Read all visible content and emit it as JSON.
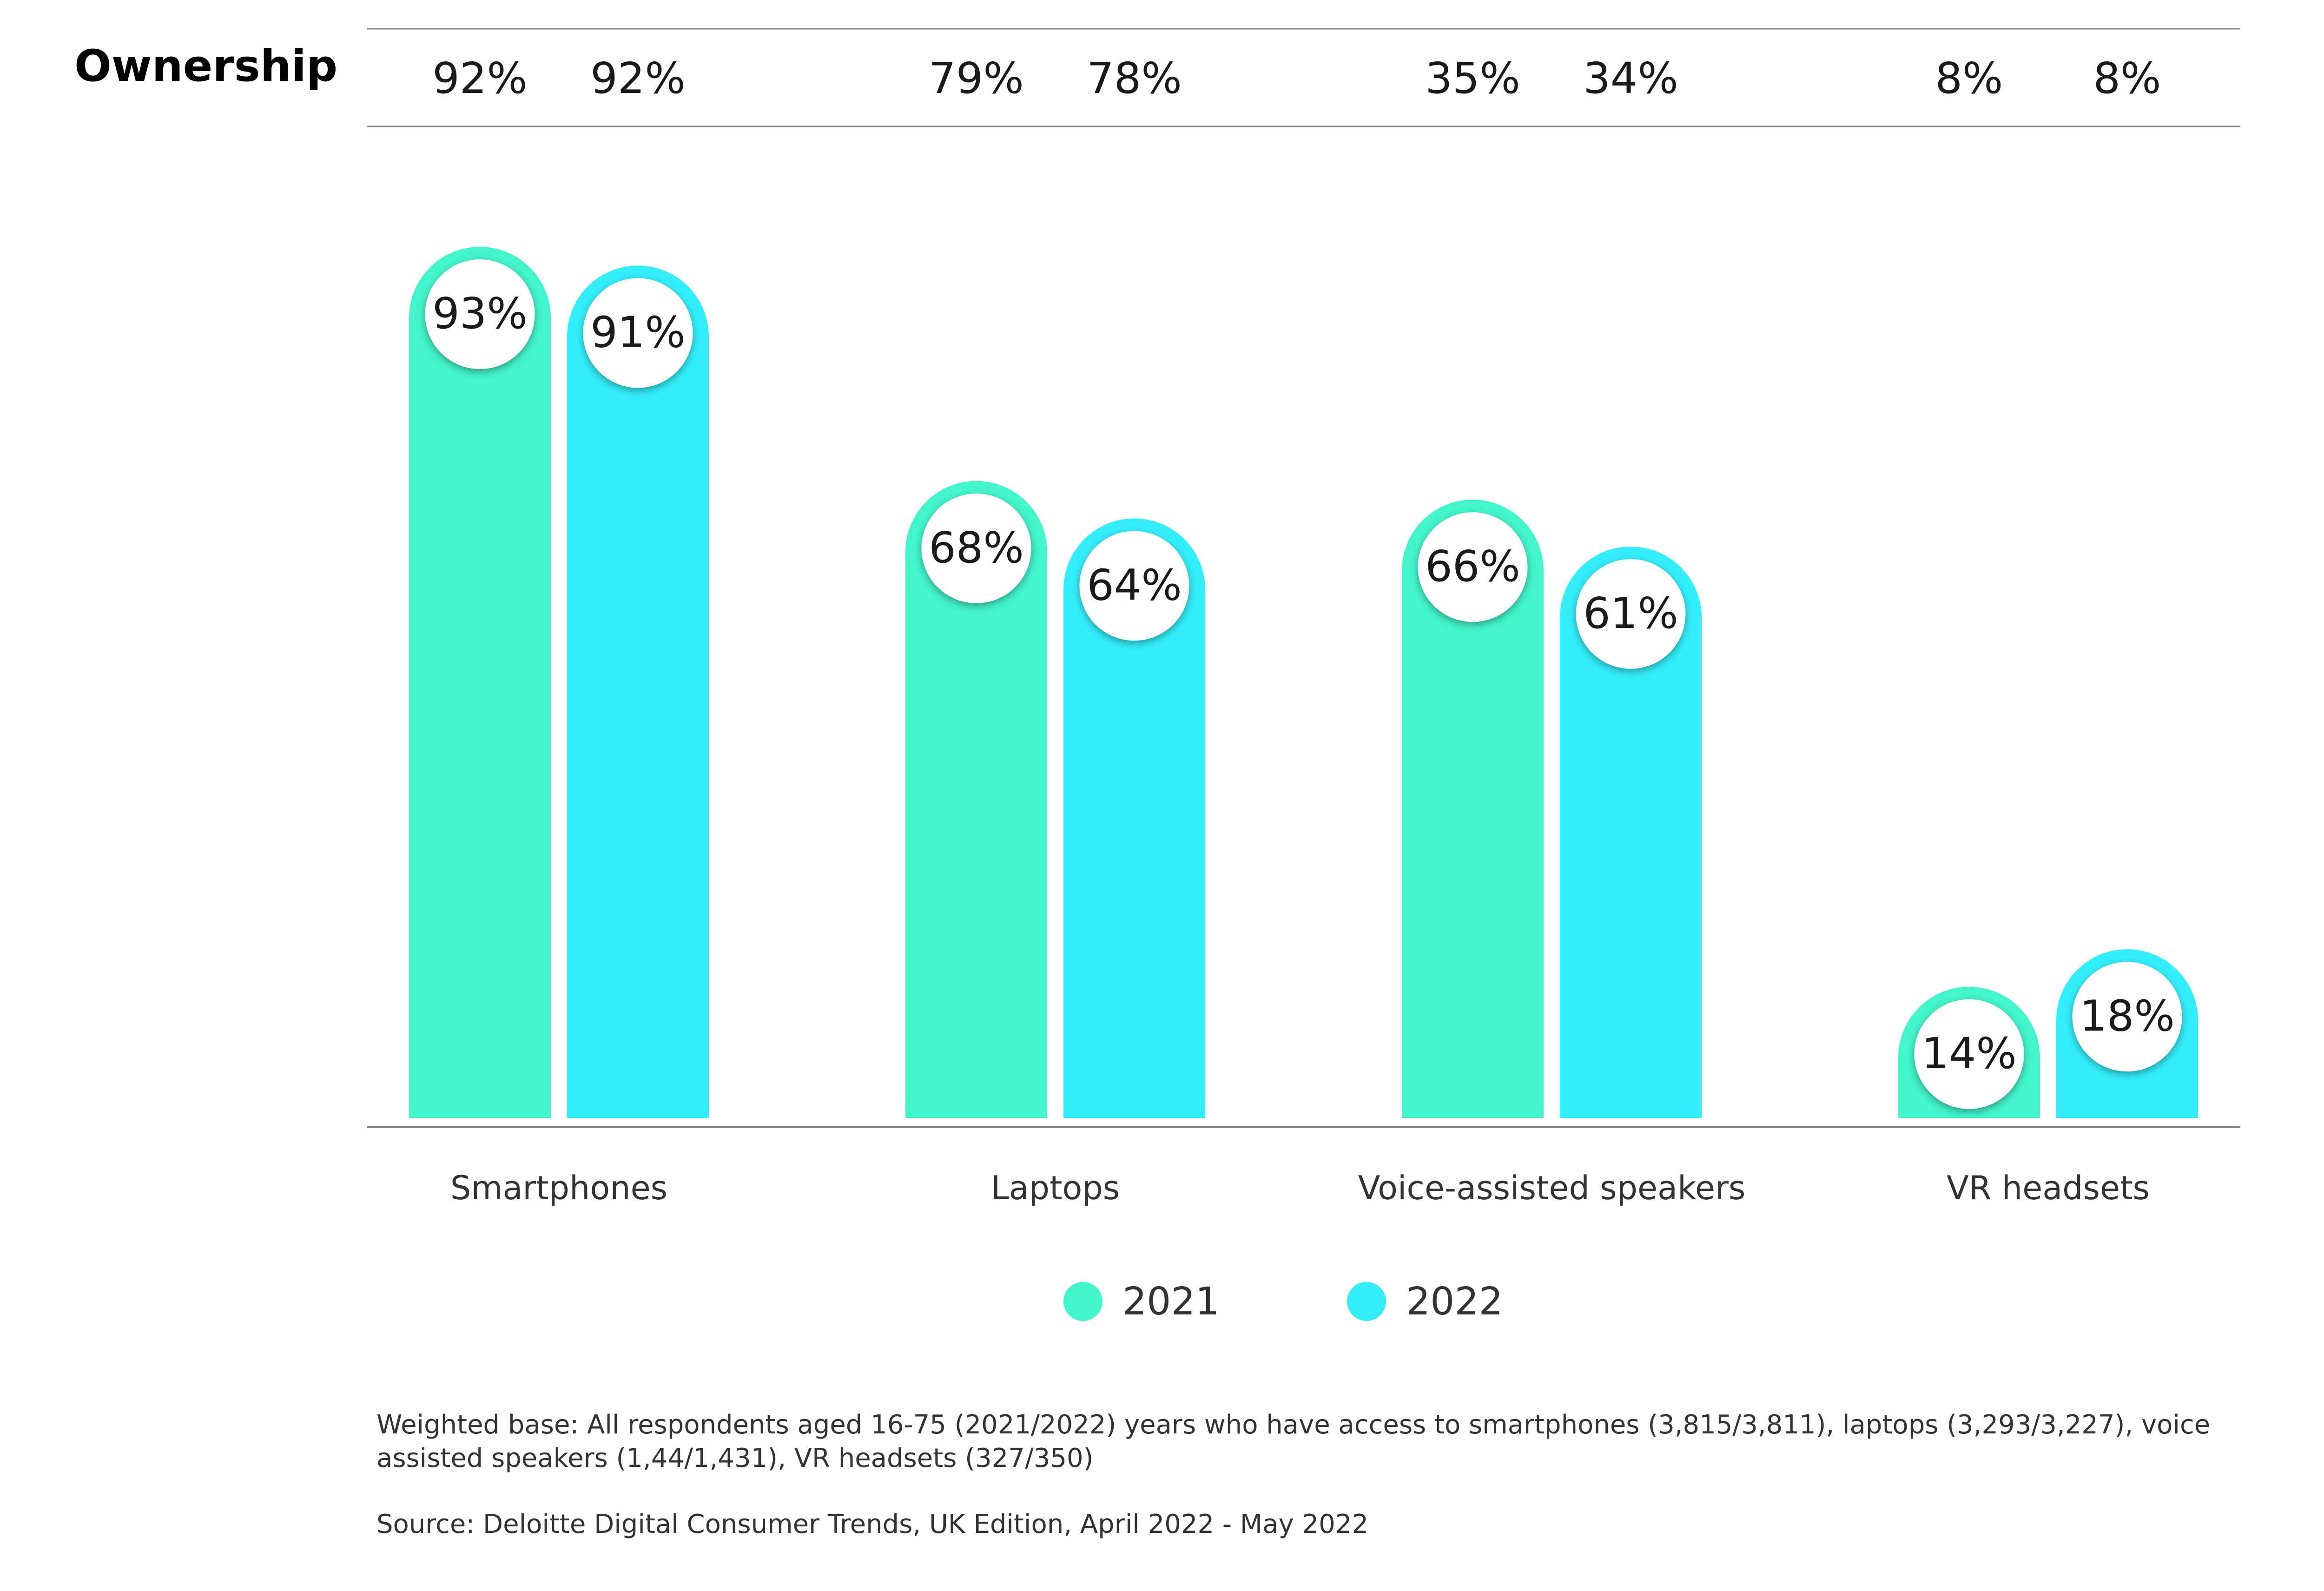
{
  "row_label": "Ownership",
  "notes": {
    "base": "Weighted base: All respondents aged 16-75 (2021/2022) years who have access to smartphones (3,815/3,811), laptops (3,293/3,227), voice assisted speakers (1,44/1,431), VR headsets (327/350)",
    "source": "Source: Deloitte Digital Consumer Trends, UK Edition, April 2022 - May 2022"
  },
  "chart_data": {
    "type": "bar",
    "title": "",
    "xlabel": "",
    "ylabel": "",
    "ylim": [
      0,
      100
    ],
    "grid": false,
    "legend_position": "bottom",
    "categories": [
      "Smartphones",
      "Laptops",
      "Voice-assisted speakers",
      "VR headsets"
    ],
    "series": [
      {
        "name": "2021",
        "color": "#43f5cc",
        "values": [
          93,
          68,
          66,
          14
        ],
        "labels": [
          "93%",
          "68%",
          "66%",
          "14%"
        ]
      },
      {
        "name": "2022",
        "color": "#33eefb",
        "values": [
          91,
          64,
          61,
          18
        ],
        "labels": [
          "91%",
          "64%",
          "61%",
          "18%"
        ]
      }
    ],
    "ownership": [
      [
        "92%",
        "79%",
        "35%",
        "8%"
      ],
      [
        "92%",
        "78%",
        "34%",
        "8%"
      ]
    ]
  }
}
